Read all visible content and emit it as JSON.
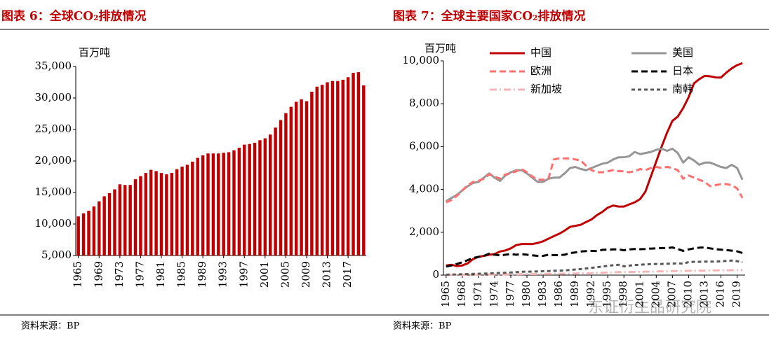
{
  "watermark": "东证衍生品研究院",
  "chart_data": [
    {
      "type": "bar",
      "title": "图表 6：全球CO₂排放情况",
      "y_label": "百万吨",
      "source": "资料来源：BP",
      "color": "#c00000",
      "categories": [
        "1965",
        null,
        null,
        null,
        "1969",
        null,
        null,
        null,
        "1973",
        null,
        null,
        null,
        "1977",
        null,
        null,
        null,
        "1981",
        null,
        null,
        null,
        "1985",
        null,
        null,
        null,
        "1989",
        null,
        null,
        null,
        "1993",
        null,
        null,
        null,
        "1997",
        null,
        null,
        null,
        "2001",
        null,
        null,
        null,
        "2005",
        null,
        null,
        null,
        "2009",
        null,
        null,
        null,
        "2013",
        null,
        null,
        null,
        "2017",
        null,
        null,
        null
      ],
      "values": [
        11200,
        11700,
        12100,
        12800,
        13600,
        14400,
        14900,
        15500,
        16300,
        16200,
        16200,
        17100,
        17600,
        18100,
        18600,
        18400,
        18100,
        17900,
        18100,
        18700,
        19100,
        19400,
        19900,
        20500,
        20900,
        21200,
        21200,
        21200,
        21300,
        21400,
        21700,
        22100,
        22600,
        22700,
        22900,
        23300,
        23600,
        24200,
        25300,
        26500,
        27600,
        28600,
        29400,
        29800,
        29500,
        31000,
        31800,
        32100,
        32500,
        32700,
        32700,
        32900,
        33300,
        34000,
        34100,
        32000
      ],
      "ylim": [
        5000,
        35000
      ],
      "yticks": [
        {
          "value": 5000,
          "label": "5,000"
        },
        {
          "value": 10000,
          "label": "10,000"
        },
        {
          "value": 15000,
          "label": "15,000"
        },
        {
          "value": 20000,
          "label": "20,000"
        },
        {
          "value": 25000,
          "label": "25,000"
        },
        {
          "value": 30000,
          "label": "30,000"
        },
        {
          "value": 35000,
          "label": "35,000"
        }
      ]
    },
    {
      "type": "line",
      "title": "图表 7：全球主要国家CO₂排放情况",
      "y_label": "百万吨",
      "source": "资料来源：BP",
      "legend": "top-right",
      "categories": [
        "1965",
        null,
        null,
        "1968",
        null,
        null,
        "1971",
        null,
        null,
        "1974",
        null,
        null,
        "1977",
        null,
        null,
        "1980",
        null,
        null,
        "1983",
        null,
        null,
        "1986",
        null,
        null,
        "1989",
        null,
        null,
        "1992",
        null,
        null,
        "1995",
        null,
        null,
        "1998",
        null,
        null,
        "2001",
        null,
        null,
        "2004",
        null,
        null,
        "2007",
        null,
        null,
        "2010",
        null,
        null,
        "2013",
        null,
        null,
        "2016",
        null,
        null,
        "2019",
        null
      ],
      "ylim": [
        0,
        10000
      ],
      "yticks": [
        0,
        {
          "value": 2000,
          "label": "2,000"
        },
        {
          "value": 4000,
          "label": "4,000"
        },
        {
          "value": 6000,
          "label": "6,000"
        },
        {
          "value": 8000,
          "label": "8,000"
        },
        {
          "value": 10000,
          "label": "10,000"
        }
      ],
      "series": [
        {
          "name": "中国",
          "color": "#c00000",
          "dash": "solid",
          "values": [
            450,
            480,
            420,
            450,
            550,
            750,
            850,
            900,
            950,
            980,
            1100,
            1150,
            1250,
            1400,
            1450,
            1450,
            1450,
            1500,
            1580,
            1700,
            1820,
            1930,
            2080,
            2250,
            2300,
            2350,
            2480,
            2600,
            2800,
            2950,
            3150,
            3250,
            3200,
            3200,
            3300,
            3400,
            3550,
            3900,
            4600,
            5300,
            6000,
            6650,
            7200,
            7400,
            7800,
            8300,
            8950,
            9150,
            9300,
            9280,
            9230,
            9220,
            9450,
            9650,
            9800,
            9900
          ]
        },
        {
          "name": "美国",
          "color": "#969696",
          "dash": "solid",
          "values": [
            3450,
            3600,
            3750,
            3950,
            4150,
            4300,
            4350,
            4550,
            4750,
            4550,
            4400,
            4650,
            4800,
            4900,
            4900,
            4750,
            4550,
            4350,
            4350,
            4500,
            4550,
            4550,
            4750,
            5000,
            5050,
            4950,
            4900,
            5000,
            5100,
            5200,
            5250,
            5400,
            5500,
            5500,
            5550,
            5750,
            5650,
            5700,
            5750,
            5850,
            5900,
            5800,
            5900,
            5700,
            5250,
            5500,
            5350,
            5150,
            5250,
            5250,
            5150,
            5050,
            5000,
            5150,
            5000,
            4450
          ]
        },
        {
          "name": "欧洲",
          "color": "#ff7070",
          "dash": "dash",
          "values": [
            3400,
            3500,
            3700,
            3950,
            4200,
            4350,
            4400,
            4500,
            4700,
            4600,
            4500,
            4700,
            4750,
            4850,
            4950,
            4800,
            4600,
            4450,
            4450,
            4500,
            5400,
            5450,
            5450,
            5450,
            5400,
            5350,
            5100,
            4900,
            4800,
            4800,
            4850,
            4900,
            4850,
            4850,
            4800,
            4850,
            4950,
            4900,
            5000,
            5050,
            5000,
            5050,
            5000,
            4900,
            4500,
            4650,
            4550,
            4450,
            4350,
            4150,
            4200,
            4250,
            4250,
            4200,
            4050,
            3600
          ]
        },
        {
          "name": "日本",
          "color": "#000000",
          "dash": "dash",
          "values": [
            400,
            450,
            520,
            600,
            700,
            800,
            850,
            900,
            1000,
            950,
            920,
            950,
            980,
            950,
            980,
            950,
            920,
            900,
            900,
            950,
            930,
            930,
            950,
            1030,
            1060,
            1100,
            1120,
            1130,
            1120,
            1180,
            1190,
            1200,
            1200,
            1160,
            1200,
            1220,
            1210,
            1220,
            1240,
            1250,
            1260,
            1260,
            1290,
            1220,
            1130,
            1200,
            1250,
            1280,
            1290,
            1250,
            1210,
            1190,
            1170,
            1140,
            1110,
            1030
          ]
        },
        {
          "name": "新加坡",
          "color": "#f4b6b6",
          "dash": "dashdot",
          "values": [
            10,
            10,
            12,
            14,
            16,
            20,
            22,
            25,
            28,
            30,
            32,
            35,
            38,
            40,
            45,
            48,
            50,
            52,
            55,
            58,
            60,
            62,
            65,
            70,
            75,
            80,
            90,
            95,
            100,
            110,
            120,
            130,
            140,
            140,
            145,
            150,
            155,
            160,
            165,
            170,
            175,
            180,
            185,
            185,
            190,
            200,
            205,
            205,
            210,
            215,
            220,
            225,
            225,
            230,
            235,
            230
          ]
        },
        {
          "name": "南韩",
          "color": "#595959",
          "dash": "shortdash",
          "values": [
            20,
            25,
            30,
            40,
            50,
            60,
            65,
            70,
            80,
            90,
            100,
            110,
            125,
            140,
            155,
            160,
            165,
            170,
            180,
            190,
            200,
            210,
            220,
            240,
            260,
            280,
            310,
            340,
            370,
            400,
            430,
            460,
            480,
            410,
            440,
            470,
            480,
            500,
            510,
            520,
            520,
            530,
            540,
            550,
            540,
            600,
            620,
            620,
            630,
            630,
            630,
            640,
            660,
            680,
            650,
            600
          ]
        }
      ]
    }
  ]
}
